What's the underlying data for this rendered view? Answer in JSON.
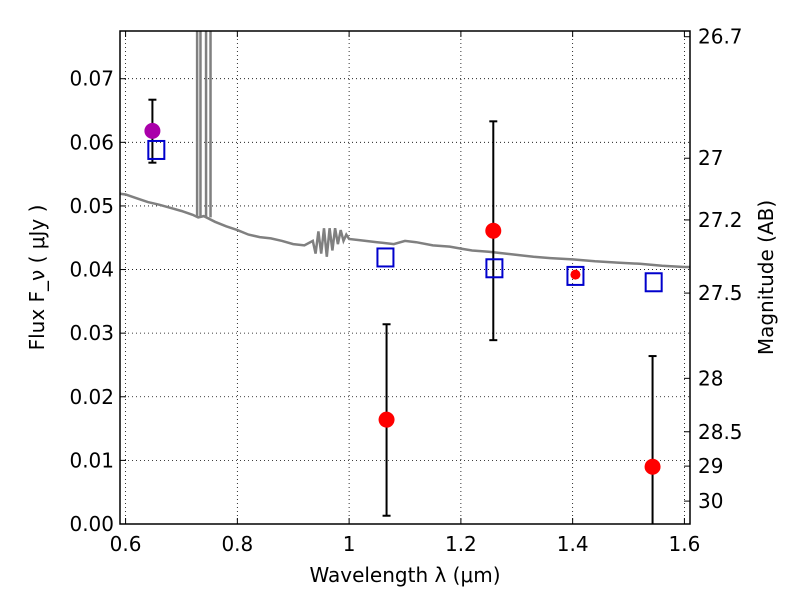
{
  "chart_data": {
    "type": "scatter",
    "title": "",
    "xlabel": "Wavelength  λ (μm)",
    "ylabel": "Flux  F_ν  ( μJy )",
    "ylabel_right": "Magnitude (AB)",
    "xlim": [
      0.59,
      1.61
    ],
    "ylim": [
      0.0,
      0.0775
    ],
    "grid": true,
    "x_ticks": [
      {
        "value": 0.6,
        "label": "0.6"
      },
      {
        "value": 0.8,
        "label": "0.8"
      },
      {
        "value": 1.0,
        "label": "1"
      },
      {
        "value": 1.2,
        "label": "1.2"
      },
      {
        "value": 1.4,
        "label": "1.4"
      },
      {
        "value": 1.6,
        "label": "1.6"
      }
    ],
    "y_ticks": [
      {
        "value": 0.0,
        "label": "0.00"
      },
      {
        "value": 0.01,
        "label": "0.01"
      },
      {
        "value": 0.02,
        "label": "0.02"
      },
      {
        "value": 0.03,
        "label": "0.03"
      },
      {
        "value": 0.04,
        "label": "0.04"
      },
      {
        "value": 0.05,
        "label": "0.05"
      },
      {
        "value": 0.06,
        "label": "0.06"
      },
      {
        "value": 0.07,
        "label": "0.07"
      }
    ],
    "right_ticks": [
      {
        "flux": 0.0766,
        "label": "26.7"
      },
      {
        "flux": 0.0575,
        "label": "27"
      },
      {
        "flux": 0.0478,
        "label": "27.2"
      },
      {
        "flux": 0.0363,
        "label": "27.5"
      },
      {
        "flux": 0.0229,
        "label": "28"
      },
      {
        "flux": 0.0145,
        "label": "28.5"
      },
      {
        "flux": 0.0091,
        "label": "29"
      },
      {
        "flux": 0.0036,
        "label": "30"
      }
    ],
    "model_spectrum": {
      "color": "#808080",
      "x": [
        0.59,
        0.6,
        0.62,
        0.64,
        0.66,
        0.68,
        0.7,
        0.72,
        0.73,
        0.74,
        0.76,
        0.78,
        0.8,
        0.82,
        0.84,
        0.86,
        0.88,
        0.9,
        0.92,
        0.935,
        0.94,
        0.945,
        0.95,
        0.955,
        0.96,
        0.965,
        0.97,
        0.975,
        0.98,
        0.985,
        0.99,
        0.995,
        1.0,
        1.02,
        1.05,
        1.08,
        1.1,
        1.12,
        1.15,
        1.18,
        1.2,
        1.22,
        1.25,
        1.28,
        1.3,
        1.33,
        1.36,
        1.4,
        1.44,
        1.48,
        1.52,
        1.56,
        1.6,
        1.61
      ],
      "y": [
        0.0519,
        0.0518,
        0.0512,
        0.0506,
        0.0502,
        0.0497,
        0.0492,
        0.0486,
        0.0482,
        0.0484,
        0.0475,
        0.0468,
        0.0462,
        0.0455,
        0.0451,
        0.0449,
        0.0445,
        0.044,
        0.0438,
        0.0445,
        0.0425,
        0.046,
        0.0425,
        0.0465,
        0.042,
        0.0465,
        0.043,
        0.0465,
        0.044,
        0.0462,
        0.0445,
        0.0455,
        0.0448,
        0.0446,
        0.0443,
        0.044,
        0.0445,
        0.0443,
        0.0438,
        0.0436,
        0.0433,
        0.043,
        0.0428,
        0.0425,
        0.0423,
        0.042,
        0.0418,
        0.0416,
        0.0413,
        0.0411,
        0.0409,
        0.0406,
        0.0404,
        0.0404
      ]
    },
    "spikes": [
      {
        "x": 0.728,
        "y_from": 0.0482,
        "y_to": 0.0775
      },
      {
        "x": 0.734,
        "y_from": 0.0482,
        "y_to": 0.0775
      },
      {
        "x": 0.744,
        "y_from": 0.0482,
        "y_to": 0.0775
      },
      {
        "x": 0.752,
        "y_from": 0.0482,
        "y_to": 0.0775
      }
    ],
    "series": [
      {
        "marker": "square",
        "color": "#0000cc",
        "points": [
          {
            "x": 0.655,
            "y": 0.0588
          },
          {
            "x": 1.065,
            "y": 0.0419
          },
          {
            "x": 1.26,
            "y": 0.0402
          },
          {
            "x": 1.405,
            "y": 0.039
          },
          {
            "x": 1.545,
            "y": 0.038
          }
        ]
      },
      {
        "marker": "circle",
        "color": "#ff0000",
        "points": [
          {
            "x": 0.648,
            "y": 0.0618,
            "yerr_low": 0.0568,
            "yerr_high": 0.0667,
            "color": "#aa00aa"
          },
          {
            "x": 1.067,
            "y": 0.0164,
            "yerr_low": 0.0013,
            "yerr_high": 0.0314
          },
          {
            "x": 1.258,
            "y": 0.0461,
            "yerr_low": 0.0289,
            "yerr_high": 0.0633
          },
          {
            "x": 1.405,
            "y": 0.0392,
            "yerr_low": null,
            "yerr_high": null,
            "size": "small"
          },
          {
            "x": 1.543,
            "y": 0.009,
            "yerr_low": 0.0,
            "yerr_high": 0.0264
          }
        ]
      }
    ]
  }
}
